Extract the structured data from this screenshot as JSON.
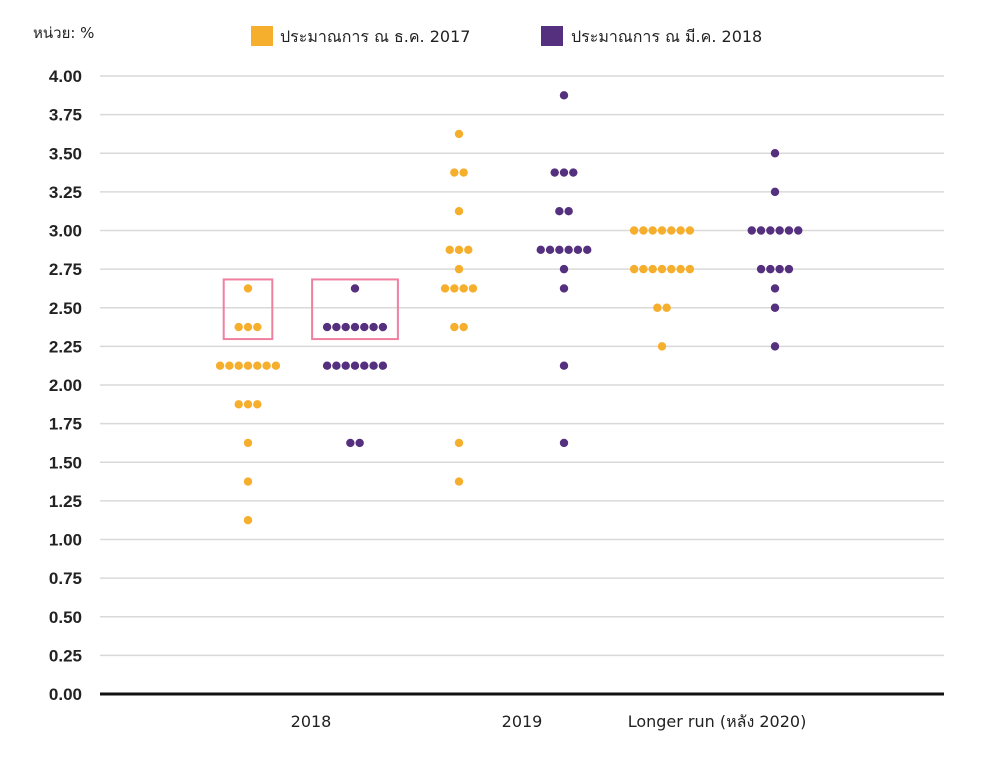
{
  "chart_data": {
    "type": "scatter",
    "subtype": "dot-plot",
    "unit_label": "หน่วย: %",
    "ylim": [
      0,
      4
    ],
    "yticks": [
      "0.00",
      "0.25",
      "0.50",
      "0.75",
      "1.00",
      "1.25",
      "1.50",
      "1.75",
      "2.00",
      "2.25",
      "2.50",
      "2.75",
      "3.00",
      "3.25",
      "3.50",
      "3.75",
      "4.00"
    ],
    "grid": true,
    "legend_position": "top",
    "categories": [
      "2018",
      "2019",
      "Longer run (หลัง 2020)"
    ],
    "series": [
      {
        "name": "ประมาณการ ณ ธ.ค. 2017",
        "color": "#f6ae2d",
        "groups": [
          [
            {
              "y": 2.625,
              "n": 1
            },
            {
              "y": 2.375,
              "n": 3
            },
            {
              "y": 2.125,
              "n": 7
            },
            {
              "y": 1.875,
              "n": 3
            },
            {
              "y": 1.625,
              "n": 1
            },
            {
              "y": 1.375,
              "n": 1
            },
            {
              "y": 1.125,
              "n": 1
            }
          ],
          [
            {
              "y": 3.625,
              "n": 1
            },
            {
              "y": 3.375,
              "n": 2
            },
            {
              "y": 3.125,
              "n": 1
            },
            {
              "y": 2.875,
              "n": 3
            },
            {
              "y": 2.75,
              "n": 1
            },
            {
              "y": 2.625,
              "n": 4
            },
            {
              "y": 2.375,
              "n": 2
            },
            {
              "y": 1.625,
              "n": 1
            },
            {
              "y": 1.375,
              "n": 1
            }
          ],
          [
            {
              "y": 3.0,
              "n": 7
            },
            {
              "y": 2.75,
              "n": 7
            },
            {
              "y": 2.5,
              "n": 2
            },
            {
              "y": 2.25,
              "n": 1
            }
          ]
        ]
      },
      {
        "name": "ประมาณการ ณ มี.ค. 2018",
        "color": "#55307f",
        "groups": [
          [
            {
              "y": 2.625,
              "n": 1
            },
            {
              "y": 2.375,
              "n": 7
            },
            {
              "y": 2.125,
              "n": 7
            },
            {
              "y": 1.625,
              "n": 2
            }
          ],
          [
            {
              "y": 3.875,
              "n": 1
            },
            {
              "y": 3.375,
              "n": 3
            },
            {
              "y": 3.125,
              "n": 2
            },
            {
              "y": 2.875,
              "n": 6
            },
            {
              "y": 2.75,
              "n": 1
            },
            {
              "y": 2.625,
              "n": 1
            },
            {
              "y": 2.125,
              "n": 1
            },
            {
              "y": 1.625,
              "n": 1
            }
          ],
          [
            {
              "y": 3.5,
              "n": 1
            },
            {
              "y": 3.25,
              "n": 1
            },
            {
              "y": 3.0,
              "n": 6
            },
            {
              "y": 2.75,
              "n": 4
            },
            {
              "y": 2.625,
              "n": 1
            },
            {
              "y": 2.5,
              "n": 1
            },
            {
              "y": 2.25,
              "n": 1
            }
          ]
        ]
      }
    ],
    "highlight": {
      "category": "2018",
      "y_from": 2.375,
      "y_to": 2.625,
      "color": "#f080a0"
    }
  }
}
